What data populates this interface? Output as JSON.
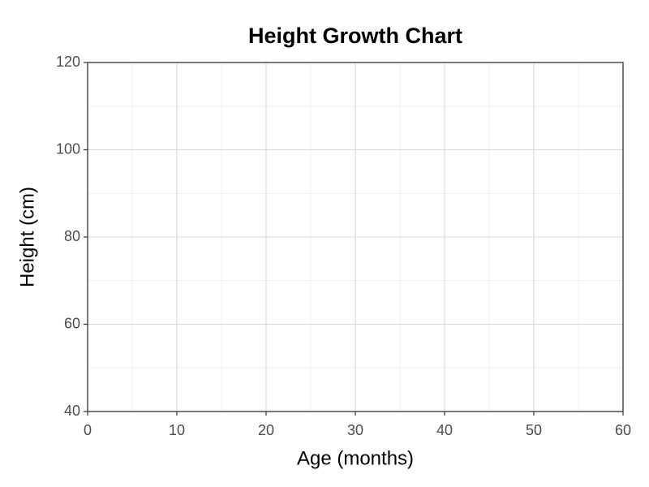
{
  "chart_data": {
    "type": "line",
    "title": "Height Growth Chart",
    "xlabel": "Age (months)",
    "ylabel": "Height (cm)",
    "series": [],
    "xlim": [
      0,
      60
    ],
    "xticks": [
      0,
      10,
      20,
      30,
      40,
      50,
      60
    ],
    "ylim": [
      40,
      120
    ],
    "yticks": [
      40,
      60,
      80,
      100,
      120
    ],
    "grid": true
  }
}
